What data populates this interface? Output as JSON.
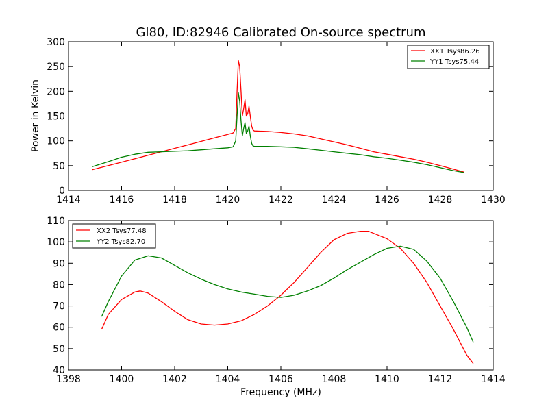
{
  "chart_data": [
    {
      "type": "line",
      "title": "Gl80, ID:82946 Calibrated On-source spectrum",
      "xlabel": "",
      "ylabel": "Power in Kelvin",
      "xlim": [
        1414,
        1430
      ],
      "ylim": [
        0,
        300
      ],
      "xticks": [
        1414,
        1416,
        1418,
        1420,
        1422,
        1424,
        1426,
        1428,
        1430
      ],
      "yticks": [
        0,
        50,
        100,
        150,
        200,
        250,
        300
      ],
      "grid": false,
      "legend_position": "top-right",
      "series": [
        {
          "name": "XX1 Tsys86.26",
          "color": "#ff0000",
          "x": [
            1414.9,
            1415.5,
            1416.0,
            1416.5,
            1417.0,
            1417.5,
            1418.0,
            1418.5,
            1419.0,
            1419.5,
            1420.0,
            1420.2,
            1420.3,
            1420.35,
            1420.4,
            1420.45,
            1420.5,
            1420.55,
            1420.6,
            1420.65,
            1420.7,
            1420.75,
            1420.8,
            1420.85,
            1420.9,
            1420.95,
            1421.0,
            1421.5,
            1422.0,
            1422.5,
            1423.0,
            1423.5,
            1424.0,
            1424.5,
            1425.0,
            1425.5,
            1426.0,
            1426.5,
            1427.0,
            1427.5,
            1428.0,
            1428.5,
            1428.9
          ],
          "y": [
            42,
            50,
            57,
            64,
            71,
            78,
            85,
            92,
            99,
            106,
            113,
            116,
            125,
            200,
            262,
            250,
            200,
            150,
            165,
            183,
            150,
            155,
            170,
            150,
            130,
            122,
            120,
            119,
            117,
            114,
            110,
            104,
            98,
            92,
            85,
            78,
            73,
            68,
            63,
            57,
            50,
            43,
            37
          ]
        },
        {
          "name": "YY1 Tsys75.44",
          "color": "#008000",
          "x": [
            1414.9,
            1415.5,
            1416.0,
            1416.5,
            1417.0,
            1417.5,
            1418.0,
            1418.5,
            1419.0,
            1419.5,
            1420.0,
            1420.2,
            1420.3,
            1420.35,
            1420.4,
            1420.45,
            1420.5,
            1420.55,
            1420.6,
            1420.65,
            1420.7,
            1420.75,
            1420.8,
            1420.85,
            1420.9,
            1420.95,
            1421.0,
            1421.5,
            1422.0,
            1422.5,
            1423.0,
            1423.5,
            1424.0,
            1424.5,
            1425.0,
            1425.5,
            1426.0,
            1426.5,
            1427.0,
            1427.5,
            1428.0,
            1428.5,
            1428.9
          ],
          "y": [
            48,
            58,
            67,
            73,
            77,
            78,
            79,
            80,
            82,
            84,
            86,
            88,
            100,
            150,
            197,
            180,
            140,
            110,
            125,
            137,
            115,
            120,
            130,
            110,
            95,
            90,
            89,
            89,
            88,
            87,
            84,
            81,
            78,
            75,
            72,
            68,
            65,
            61,
            57,
            52,
            46,
            40,
            36
          ]
        }
      ]
    },
    {
      "type": "line",
      "title": "",
      "xlabel": "Frequency (MHz)",
      "ylabel": "",
      "xlim": [
        1398,
        1414
      ],
      "ylim": [
        40,
        110
      ],
      "xticks": [
        1398,
        1400,
        1402,
        1404,
        1406,
        1408,
        1410,
        1412,
        1414
      ],
      "yticks": [
        40,
        50,
        60,
        70,
        80,
        90,
        100,
        110
      ],
      "grid": false,
      "legend_position": "top-left",
      "series": [
        {
          "name": "XX2 Tsys77.48",
          "color": "#ff0000",
          "x": [
            1399.25,
            1399.5,
            1400.0,
            1400.5,
            1400.7,
            1401.0,
            1401.5,
            1402.0,
            1402.5,
            1403.0,
            1403.5,
            1404.0,
            1404.5,
            1405.0,
            1405.5,
            1406.0,
            1406.5,
            1407.0,
            1407.5,
            1408.0,
            1408.5,
            1409.0,
            1409.3,
            1409.5,
            1410.0,
            1410.5,
            1411.0,
            1411.5,
            1412.0,
            1412.5,
            1413.0,
            1413.25
          ],
          "y": [
            59,
            66,
            73,
            76.5,
            77,
            76,
            72,
            67.5,
            63.5,
            61.5,
            61,
            61.5,
            63,
            66,
            70,
            75,
            81,
            88,
            95,
            101,
            104,
            105,
            105,
            104,
            101.5,
            97,
            90,
            81,
            70,
            59,
            47,
            43
          ]
        },
        {
          "name": "YY2 Tsys82.70",
          "color": "#008000",
          "x": [
            1399.25,
            1399.5,
            1400.0,
            1400.5,
            1401.0,
            1401.5,
            1402.0,
            1402.5,
            1403.0,
            1403.5,
            1404.0,
            1404.5,
            1405.0,
            1405.5,
            1406.0,
            1406.5,
            1407.0,
            1407.5,
            1408.0,
            1408.5,
            1409.0,
            1409.5,
            1410.0,
            1410.5,
            1411.0,
            1411.5,
            1412.0,
            1412.5,
            1413.0,
            1413.25
          ],
          "y": [
            65,
            72,
            84,
            91.5,
            93.5,
            92.5,
            89,
            85.5,
            82.5,
            80,
            78,
            76.5,
            75.5,
            74.5,
            74,
            75,
            77,
            79.5,
            83,
            87,
            90.5,
            94,
            97,
            98,
            96.5,
            91,
            83,
            72,
            60,
            53
          ]
        }
      ]
    }
  ]
}
